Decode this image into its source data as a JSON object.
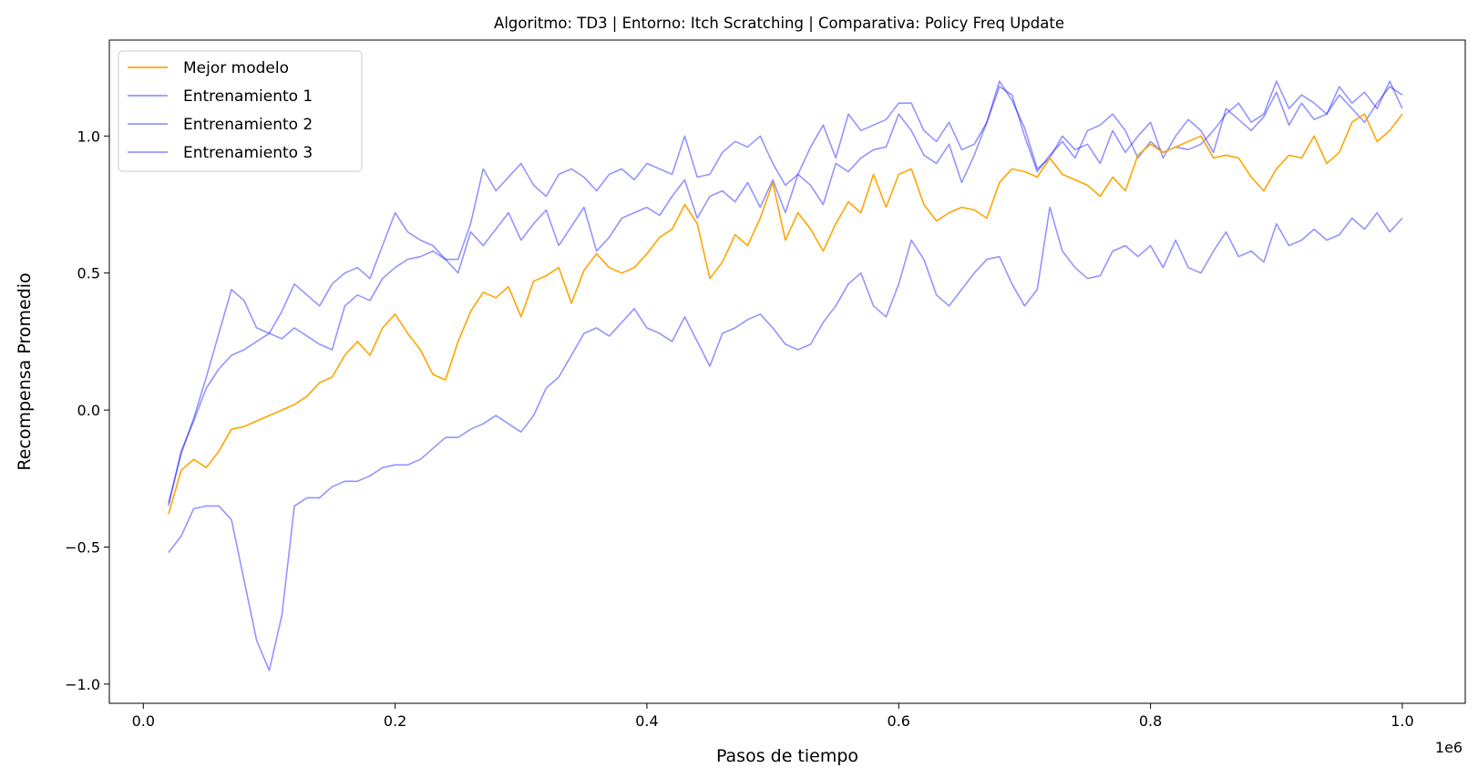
{
  "chart_data": {
    "type": "line",
    "title": "Algoritmo: TD3 | Entorno: Itch Scratching | Comparativa: Policy Freq Update",
    "xlabel": "Pasos de tiempo",
    "ylabel": "Recompensa Promedio",
    "x_offset_label": "1e6",
    "xlim": [
      -0.027,
      1.05
    ],
    "ylim": [
      -1.07,
      1.35
    ],
    "x_ticks": [
      0.0,
      0.2,
      0.4,
      0.6,
      0.8,
      1.0
    ],
    "x_tick_labels": [
      "0.0",
      "0.2",
      "0.4",
      "0.6",
      "0.8",
      "1.0"
    ],
    "y_ticks": [
      -1.0,
      -0.5,
      0.0,
      0.5,
      1.0
    ],
    "y_tick_labels": [
      "−1.0",
      "−0.5",
      "0.0",
      "0.5",
      "1.0"
    ],
    "grid": false,
    "legend_position": "top-left",
    "series": [
      {
        "name": "Mejor modelo",
        "color": "#ffa500",
        "alpha": 1.0,
        "x": [
          0.02,
          0.03,
          0.04,
          0.05,
          0.06,
          0.07,
          0.08,
          0.09,
          0.1,
          0.11,
          0.12,
          0.13,
          0.14,
          0.15,
          0.16,
          0.17,
          0.18,
          0.19,
          0.2,
          0.21,
          0.22,
          0.23,
          0.24,
          0.25,
          0.26,
          0.27,
          0.28,
          0.29,
          0.3,
          0.31,
          0.32,
          0.33,
          0.34,
          0.35,
          0.36,
          0.37,
          0.38,
          0.39,
          0.4,
          0.41,
          0.42,
          0.43,
          0.44,
          0.45,
          0.46,
          0.47,
          0.48,
          0.49,
          0.5,
          0.51,
          0.52,
          0.53,
          0.54,
          0.55,
          0.56,
          0.57,
          0.58,
          0.59,
          0.6,
          0.61,
          0.62,
          0.63,
          0.64,
          0.65,
          0.66,
          0.67,
          0.68,
          0.69,
          0.7,
          0.71,
          0.72,
          0.73,
          0.74,
          0.75,
          0.76,
          0.77,
          0.78,
          0.79,
          0.8,
          0.81,
          0.82,
          0.83,
          0.84,
          0.85,
          0.86,
          0.87,
          0.88,
          0.89,
          0.9,
          0.91,
          0.92,
          0.93,
          0.94,
          0.95,
          0.96,
          0.97,
          0.98,
          0.99,
          1.0
        ],
        "y": [
          -0.38,
          -0.22,
          -0.18,
          -0.21,
          -0.15,
          -0.07,
          -0.06,
          -0.04,
          -0.02,
          0.0,
          0.02,
          0.05,
          0.1,
          0.12,
          0.2,
          0.25,
          0.2,
          0.3,
          0.35,
          0.28,
          0.22,
          0.13,
          0.11,
          0.25,
          0.36,
          0.43,
          0.41,
          0.45,
          0.34,
          0.47,
          0.49,
          0.52,
          0.39,
          0.51,
          0.57,
          0.52,
          0.5,
          0.52,
          0.57,
          0.63,
          0.66,
          0.75,
          0.68,
          0.48,
          0.54,
          0.64,
          0.6,
          0.7,
          0.83,
          0.62,
          0.72,
          0.66,
          0.58,
          0.68,
          0.76,
          0.72,
          0.86,
          0.74,
          0.86,
          0.88,
          0.75,
          0.69,
          0.72,
          0.74,
          0.73,
          0.7,
          0.83,
          0.88,
          0.87,
          0.85,
          0.92,
          0.86,
          0.84,
          0.82,
          0.78,
          0.85,
          0.8,
          0.93,
          0.97,
          0.94,
          0.96,
          0.98,
          1.0,
          0.92,
          0.93,
          0.92,
          0.85,
          0.8,
          0.88,
          0.93,
          0.92,
          1.0,
          0.9,
          0.94,
          1.05,
          1.08,
          0.98,
          1.02,
          1.08
        ]
      },
      {
        "name": "Entrenamiento 1",
        "color": "#0000ff",
        "alpha": 0.42,
        "x": [
          0.02,
          0.03,
          0.04,
          0.05,
          0.06,
          0.07,
          0.08,
          0.09,
          0.1,
          0.11,
          0.12,
          0.13,
          0.14,
          0.15,
          0.16,
          0.17,
          0.18,
          0.19,
          0.2,
          0.21,
          0.22,
          0.23,
          0.24,
          0.25,
          0.26,
          0.27,
          0.28,
          0.29,
          0.3,
          0.31,
          0.32,
          0.33,
          0.34,
          0.35,
          0.36,
          0.37,
          0.38,
          0.39,
          0.4,
          0.41,
          0.42,
          0.43,
          0.44,
          0.45,
          0.46,
          0.47,
          0.48,
          0.49,
          0.5,
          0.51,
          0.52,
          0.53,
          0.54,
          0.55,
          0.56,
          0.57,
          0.58,
          0.59,
          0.6,
          0.61,
          0.62,
          0.63,
          0.64,
          0.65,
          0.66,
          0.67,
          0.68,
          0.69,
          0.7,
          0.71,
          0.72,
          0.73,
          0.74,
          0.75,
          0.76,
          0.77,
          0.78,
          0.79,
          0.8,
          0.81,
          0.82,
          0.83,
          0.84,
          0.85,
          0.86,
          0.87,
          0.88,
          0.89,
          0.9,
          0.91,
          0.92,
          0.93,
          0.94,
          0.95,
          0.96,
          0.97,
          0.98,
          0.99,
          1.0
        ],
        "y": [
          -0.35,
          -0.15,
          -0.04,
          0.08,
          0.15,
          0.2,
          0.22,
          0.25,
          0.28,
          0.26,
          0.3,
          0.27,
          0.24,
          0.22,
          0.38,
          0.42,
          0.4,
          0.48,
          0.52,
          0.55,
          0.56,
          0.58,
          0.55,
          0.5,
          0.65,
          0.6,
          0.66,
          0.72,
          0.62,
          0.68,
          0.73,
          0.6,
          0.67,
          0.74,
          0.58,
          0.63,
          0.7,
          0.72,
          0.74,
          0.71,
          0.78,
          0.84,
          0.7,
          0.78,
          0.8,
          0.76,
          0.83,
          0.74,
          0.84,
          0.72,
          0.86,
          0.82,
          0.75,
          0.9,
          0.87,
          0.92,
          0.95,
          0.96,
          1.08,
          1.02,
          0.93,
          0.9,
          0.97,
          0.83,
          0.93,
          1.05,
          1.2,
          1.13,
          1.03,
          0.88,
          0.92,
          1.0,
          0.95,
          0.97,
          0.9,
          1.02,
          0.94,
          1.0,
          1.05,
          0.92,
          1.0,
          1.06,
          1.02,
          0.94,
          1.1,
          1.06,
          1.02,
          1.07,
          1.16,
          1.04,
          1.12,
          1.06,
          1.08,
          1.15,
          1.1,
          1.05,
          1.12,
          1.18,
          1.15
        ]
      },
      {
        "name": "Entrenamiento 2",
        "color": "#0000ff",
        "alpha": 0.42,
        "x": [
          0.02,
          0.03,
          0.04,
          0.05,
          0.06,
          0.07,
          0.08,
          0.09,
          0.1,
          0.11,
          0.12,
          0.13,
          0.14,
          0.15,
          0.16,
          0.17,
          0.18,
          0.19,
          0.2,
          0.21,
          0.22,
          0.23,
          0.24,
          0.25,
          0.26,
          0.27,
          0.28,
          0.29,
          0.3,
          0.31,
          0.32,
          0.33,
          0.34,
          0.35,
          0.36,
          0.37,
          0.38,
          0.39,
          0.4,
          0.41,
          0.42,
          0.43,
          0.44,
          0.45,
          0.46,
          0.47,
          0.48,
          0.49,
          0.5,
          0.51,
          0.52,
          0.53,
          0.54,
          0.55,
          0.56,
          0.57,
          0.58,
          0.59,
          0.6,
          0.61,
          0.62,
          0.63,
          0.64,
          0.65,
          0.66,
          0.67,
          0.68,
          0.69,
          0.7,
          0.71,
          0.72,
          0.73,
          0.74,
          0.75,
          0.76,
          0.77,
          0.78,
          0.79,
          0.8,
          0.81,
          0.82,
          0.83,
          0.84,
          0.85,
          0.86,
          0.87,
          0.88,
          0.89,
          0.9,
          0.91,
          0.92,
          0.93,
          0.94,
          0.95,
          0.96,
          0.97,
          0.98,
          0.99,
          1.0
        ],
        "y": [
          -0.34,
          -0.16,
          -0.03,
          0.12,
          0.28,
          0.44,
          0.4,
          0.3,
          0.28,
          0.36,
          0.46,
          0.42,
          0.38,
          0.46,
          0.5,
          0.52,
          0.48,
          0.6,
          0.72,
          0.65,
          0.62,
          0.6,
          0.55,
          0.55,
          0.68,
          0.88,
          0.8,
          0.85,
          0.9,
          0.82,
          0.78,
          0.86,
          0.88,
          0.85,
          0.8,
          0.86,
          0.88,
          0.84,
          0.9,
          0.88,
          0.86,
          1.0,
          0.85,
          0.86,
          0.94,
          0.98,
          0.96,
          1.0,
          0.9,
          0.82,
          0.86,
          0.96,
          1.04,
          0.92,
          1.08,
          1.02,
          1.04,
          1.06,
          1.12,
          1.12,
          1.02,
          0.98,
          1.05,
          0.95,
          0.97,
          1.05,
          1.18,
          1.15,
          1.0,
          0.87,
          0.93,
          0.98,
          0.92,
          1.02,
          1.04,
          1.08,
          1.02,
          0.92,
          0.98,
          0.94,
          0.96,
          0.95,
          0.97,
          1.02,
          1.08,
          1.12,
          1.05,
          1.08,
          1.2,
          1.1,
          1.15,
          1.12,
          1.08,
          1.18,
          1.12,
          1.16,
          1.1,
          1.2,
          1.1
        ]
      },
      {
        "name": "Entrenamiento 3",
        "color": "#0000ff",
        "alpha": 0.42,
        "x": [
          0.02,
          0.03,
          0.04,
          0.05,
          0.06,
          0.07,
          0.08,
          0.09,
          0.1,
          0.11,
          0.12,
          0.13,
          0.14,
          0.15,
          0.16,
          0.17,
          0.18,
          0.19,
          0.2,
          0.21,
          0.22,
          0.23,
          0.24,
          0.25,
          0.26,
          0.27,
          0.28,
          0.29,
          0.3,
          0.31,
          0.32,
          0.33,
          0.34,
          0.35,
          0.36,
          0.37,
          0.38,
          0.39,
          0.4,
          0.41,
          0.42,
          0.43,
          0.44,
          0.45,
          0.46,
          0.47,
          0.48,
          0.49,
          0.5,
          0.51,
          0.52,
          0.53,
          0.54,
          0.55,
          0.56,
          0.57,
          0.58,
          0.59,
          0.6,
          0.61,
          0.62,
          0.63,
          0.64,
          0.65,
          0.66,
          0.67,
          0.68,
          0.69,
          0.7,
          0.71,
          0.72,
          0.73,
          0.74,
          0.75,
          0.76,
          0.77,
          0.78,
          0.79,
          0.8,
          0.81,
          0.82,
          0.83,
          0.84,
          0.85,
          0.86,
          0.87,
          0.88,
          0.89,
          0.9,
          0.91,
          0.92,
          0.93,
          0.94,
          0.95,
          0.96,
          0.97,
          0.98,
          0.99,
          1.0
        ],
        "y": [
          -0.52,
          -0.46,
          -0.36,
          -0.35,
          -0.35,
          -0.4,
          -0.62,
          -0.84,
          -0.95,
          -0.75,
          -0.35,
          -0.32,
          -0.32,
          -0.28,
          -0.26,
          -0.26,
          -0.24,
          -0.21,
          -0.2,
          -0.2,
          -0.18,
          -0.14,
          -0.1,
          -0.1,
          -0.07,
          -0.05,
          -0.02,
          -0.05,
          -0.08,
          -0.02,
          0.08,
          0.12,
          0.2,
          0.28,
          0.3,
          0.27,
          0.32,
          0.37,
          0.3,
          0.28,
          0.25,
          0.34,
          0.25,
          0.16,
          0.28,
          0.3,
          0.33,
          0.35,
          0.3,
          0.24,
          0.22,
          0.24,
          0.32,
          0.38,
          0.46,
          0.5,
          0.38,
          0.34,
          0.46,
          0.62,
          0.55,
          0.42,
          0.38,
          0.44,
          0.5,
          0.55,
          0.56,
          0.46,
          0.38,
          0.44,
          0.74,
          0.58,
          0.52,
          0.48,
          0.49,
          0.58,
          0.6,
          0.56,
          0.6,
          0.52,
          0.62,
          0.52,
          0.5,
          0.58,
          0.65,
          0.56,
          0.58,
          0.54,
          0.68,
          0.6,
          0.62,
          0.66,
          0.62,
          0.64,
          0.7,
          0.66,
          0.72,
          0.65,
          0.7
        ]
      }
    ]
  }
}
